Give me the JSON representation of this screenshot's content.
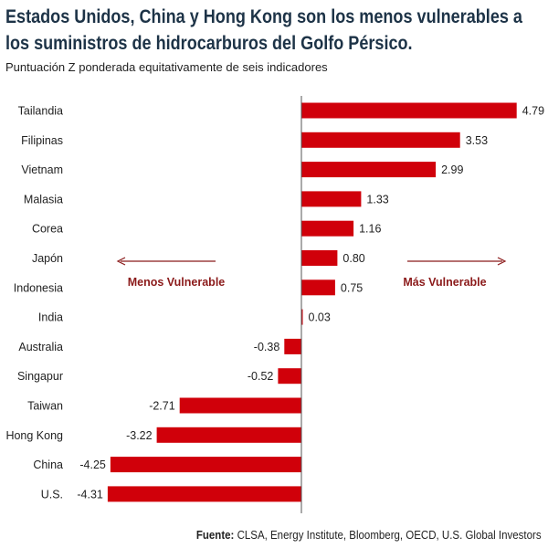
{
  "header": {
    "title_line1": "Estados Unidos, China y Hong Kong son los menos vulnerables a",
    "title_line2": "los suministros de hidrocarburos del Golfo Pérsico.",
    "subtitle": "Puntuación Z ponderada equitativamente de seis indicadores"
  },
  "footer": {
    "source_label": "Fuente:",
    "source_text": "CLSA, Energy Institute, Bloomberg, OECD, U.S. Global Investors"
  },
  "colors": {
    "bar": "#d0000a",
    "annotation": "#8b1a1a",
    "axis": "#555555",
    "title": "#1d3347"
  },
  "chart_data": {
    "type": "bar",
    "orientation": "horizontal",
    "title": "Estados Unidos, China y Hong Kong son los menos vulnerables a los suministros de hidrocarburos del Golfo Pérsico.",
    "subtitle": "Puntuación Z ponderada equitativamente de seis indicadores",
    "categories": [
      "Tailandia",
      "Filipinas",
      "Vietnam",
      "Malasia",
      "Corea",
      "Japón",
      "Indonesia",
      "India",
      "Australia",
      "Singapur",
      "Taiwan",
      "Hong Kong",
      "China",
      "U.S."
    ],
    "values": [
      4.79,
      3.53,
      2.99,
      1.33,
      1.16,
      0.8,
      0.75,
      0.03,
      -0.38,
      -0.52,
      -2.71,
      -3.22,
      -4.25,
      -4.31
    ],
    "value_labels": [
      "4.79",
      "3.53",
      "2.99",
      "1.33",
      "1.16",
      "0.80",
      "0.75",
      "0.03",
      "-0.38",
      "-0.52",
      "-2.71",
      "-3.22",
      "-4.25",
      "-4.31"
    ],
    "xlim": [
      -4.6,
      5.1
    ],
    "annotations": {
      "left": "Menos Vulnerable",
      "right": "Más Vulnerable"
    },
    "xlabel": "",
    "ylabel": ""
  }
}
